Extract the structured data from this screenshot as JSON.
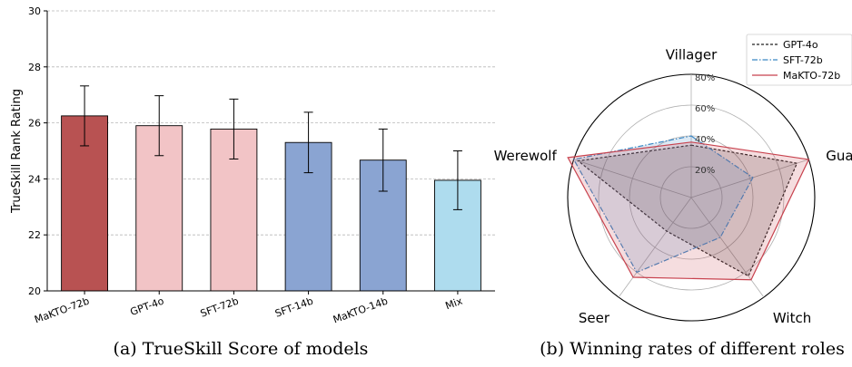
{
  "chart_data": [
    {
      "type": "bar",
      "caption": "(a) TrueSkill Score of models",
      "ylabel": "TrueSkill Rank Rating",
      "xlabel": "",
      "ylim": [
        20,
        30
      ],
      "yticks": [
        20,
        22,
        24,
        26,
        28,
        30
      ],
      "grid": true,
      "categories": [
        "MaKTO-72b",
        "GPT-4o",
        "SFT-72b",
        "SFT-14b",
        "MaKTO-14b",
        "Mix"
      ],
      "values": [
        26.25,
        25.9,
        25.78,
        25.3,
        24.67,
        23.95
      ],
      "error": [
        1.07,
        1.07,
        1.07,
        1.08,
        1.11,
        1.05
      ],
      "colors": [
        "#b85252",
        "#f2c4c6",
        "#f2c4c6",
        "#8aa4d2",
        "#8aa4d2",
        "#aedcee"
      ]
    },
    {
      "type": "radar",
      "caption": "(b) Winning rates of different roles",
      "axes": [
        "Villager",
        "Guard",
        "Witch",
        "Seer",
        "Werewolf"
      ],
      "rmax": 80,
      "rticks": [
        20,
        40,
        60,
        80
      ],
      "rtick_labels": [
        "20%",
        "40%",
        "60%",
        "80%"
      ],
      "legend": "top-right",
      "series": [
        {
          "name": "GPT-4o",
          "values": [
            34,
            72,
            63,
            27,
            77
          ],
          "color": "#222222",
          "style": "dashed"
        },
        {
          "name": "SFT-72b",
          "values": [
            40,
            42,
            32,
            60,
            80
          ],
          "color": "#3b87c4",
          "style": "dashdot"
        },
        {
          "name": "MaKTO-72b",
          "values": [
            36,
            80,
            66,
            64,
            84
          ],
          "color": "#c8424e",
          "style": "solid"
        }
      ]
    }
  ]
}
